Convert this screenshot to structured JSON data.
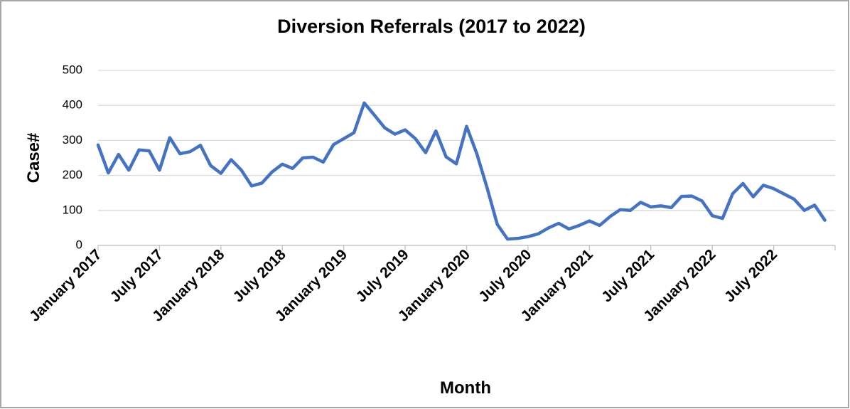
{
  "chart_data": {
    "type": "line",
    "title": "Diversion Referrals (2017 to 2022)",
    "x_label": "Month",
    "y_label": "Case#",
    "categories": [
      "January 2017",
      null,
      null,
      null,
      null,
      null,
      "July 2017",
      null,
      null,
      null,
      null,
      null,
      "January 2018",
      null,
      null,
      null,
      null,
      null,
      "July 2018",
      null,
      null,
      null,
      null,
      null,
      "January 2019",
      null,
      null,
      null,
      null,
      null,
      "July 2019",
      null,
      null,
      null,
      null,
      null,
      "January 2020",
      null,
      null,
      null,
      null,
      null,
      "July 2020",
      null,
      null,
      null,
      null,
      null,
      "January 2021",
      null,
      null,
      null,
      null,
      null,
      "July 2021",
      null,
      null,
      null,
      null,
      null,
      "January 2022",
      null,
      null,
      null,
      null,
      null,
      "July 2022",
      null,
      null,
      null,
      null,
      null
    ],
    "series": [
      {
        "name": "Case#",
        "color": "#4472c4",
        "values": [
          287,
          207,
          260,
          215,
          273,
          270,
          215,
          308,
          262,
          268,
          286,
          228,
          206,
          245,
          215,
          170,
          178,
          210,
          232,
          220,
          250,
          252,
          238,
          288,
          305,
          322,
          407,
          372,
          336,
          318,
          330,
          305,
          265,
          327,
          253,
          233,
          340,
          262,
          165,
          60,
          18,
          20,
          25,
          33,
          50,
          63,
          47,
          57,
          70,
          57,
          82,
          102,
          100,
          123,
          110,
          113,
          108,
          140,
          141,
          127,
          85,
          77,
          148,
          177,
          139,
          172,
          162,
          147,
          132,
          100,
          115,
          72
        ]
      }
    ],
    "ylim": [
      0,
      500
    ],
    "yticks": [
      0,
      100,
      200,
      300,
      400,
      500
    ],
    "grid": true
  }
}
